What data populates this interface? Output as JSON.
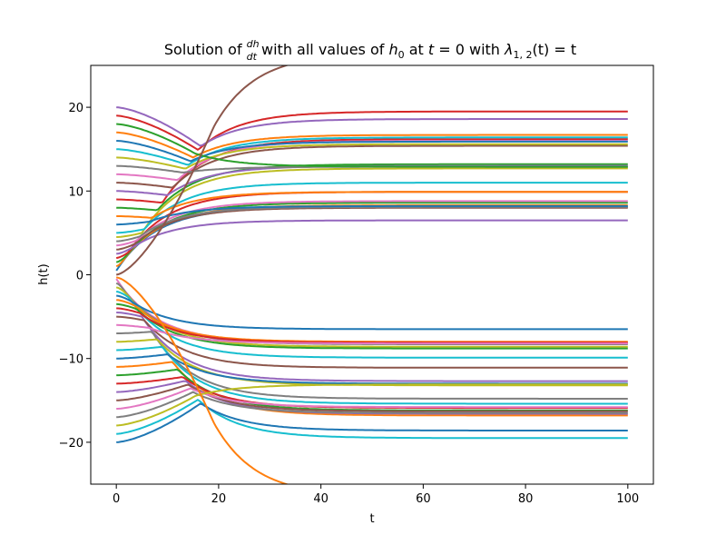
{
  "chart_data": {
    "type": "line",
    "title": {
      "t1": "Solution of ",
      "frac_num": "dh",
      "frac_den": "dt",
      "t2": " with all values of ",
      "h0_main": "h",
      "h0_sub": "0",
      "t3": " at ",
      "eq_var": "t",
      "eq_rest": " = 0 with ",
      "lambda": "λ",
      "lambda_sub": "1, 2",
      "lambda_rest": "(t) = t"
    },
    "xlabel": "t",
    "ylabel": "h(t)",
    "xlim": [
      -5,
      105
    ],
    "ylim": [
      -25,
      25
    ],
    "x_ticks": [
      {
        "value": 0,
        "label": "0"
      },
      {
        "value": 20,
        "label": "20"
      },
      {
        "value": 40,
        "label": "40"
      },
      {
        "value": 60,
        "label": "60"
      },
      {
        "value": 80,
        "label": "80"
      },
      {
        "value": 100,
        "label": "100"
      }
    ],
    "y_ticks": [
      {
        "value": -20,
        "label": "−20"
      },
      {
        "value": -10,
        "label": "−10"
      },
      {
        "value": 0,
        "label": "0"
      },
      {
        "value": 10,
        "label": "10"
      },
      {
        "value": 20,
        "label": "20"
      }
    ],
    "grid": false,
    "colors": [
      "#1f77b4",
      "#ff7f0e",
      "#2ca02c",
      "#d62728",
      "#9467bd",
      "#8c564b",
      "#e377c2",
      "#7f7f7f",
      "#bcbd22",
      "#17becf"
    ],
    "series": [
      {
        "h0": 0.5,
        "t_merge": 0.5,
        "final": 8.1
      },
      {
        "h0": 1.0,
        "t_merge": 1.5,
        "final": 8.3
      },
      {
        "h0": 1.5,
        "t_merge": 2.0,
        "final": 8.6
      },
      {
        "h0": 2.0,
        "t_merge": 2.5,
        "final": 9.9
      },
      {
        "h0": 2.5,
        "t_merge": 3.0,
        "final": 6.5
      },
      {
        "h0": 3.0,
        "t_merge": 3.5,
        "final": 8.0
      },
      {
        "h0": 3.5,
        "t_merge": 4.0,
        "final": 8.8
      },
      {
        "h0": 4.0,
        "t_merge": 4.5,
        "final": 8.1
      },
      {
        "h0": 4.5,
        "t_merge": 5.0,
        "final": 12.7
      },
      {
        "h0": 5.0,
        "t_merge": 5.5,
        "final": 11.0
      },
      {
        "h0": 6.0,
        "t_merge": 6.5,
        "final": 8.2
      },
      {
        "h0": 7.0,
        "t_merge": 7.0,
        "final": 9.9
      },
      {
        "h0": 8.0,
        "t_merge": 8.0,
        "final": 13.2
      },
      {
        "h0": 9.0,
        "t_merge": 9.0,
        "final": 16.2
      },
      {
        "h0": 10.0,
        "t_merge": 10.0,
        "final": 13.0
      },
      {
        "h0": 11.0,
        "t_merge": 11.0,
        "final": 15.4
      },
      {
        "h0": 12.0,
        "t_merge": 12.0,
        "final": 16.0
      },
      {
        "h0": 13.0,
        "t_merge": 13.0,
        "final": 12.9
      },
      {
        "h0": 14.0,
        "t_merge": 13.5,
        "final": 15.6
      },
      {
        "h0": 15.0,
        "t_merge": 14.0,
        "final": 16.4
      },
      {
        "h0": 16.0,
        "t_merge": 14.5,
        "final": 15.9
      },
      {
        "h0": 17.0,
        "t_merge": 15.0,
        "final": 16.7
      },
      {
        "h0": 18.0,
        "t_merge": 15.5,
        "final": 12.9
      },
      {
        "h0": 19.0,
        "t_merge": 16.0,
        "final": 19.5
      },
      {
        "h0": 20.0,
        "t_merge": 16.5,
        "final": 18.6
      },
      {
        "h0": 0.0,
        "t_merge": 19.0,
        "final": 26.5
      },
      {
        "h0": -0.5,
        "t_merge": 0.5,
        "final": -8.1
      },
      {
        "h0": -1.0,
        "t_merge": 1.5,
        "final": -8.3
      },
      {
        "h0": -1.5,
        "t_merge": 2.0,
        "final": -8.6
      },
      {
        "h0": -2.0,
        "t_merge": 2.5,
        "final": -9.9
      },
      {
        "h0": -2.5,
        "t_merge": 3.0,
        "final": -6.5
      },
      {
        "h0": -3.0,
        "t_merge": 3.5,
        "final": -8.0
      },
      {
        "h0": -3.5,
        "t_merge": 4.0,
        "final": -8.8
      },
      {
        "h0": -4.0,
        "t_merge": 4.5,
        "final": -8.1
      },
      {
        "h0": -4.5,
        "t_merge": 5.0,
        "final": -12.7
      },
      {
        "h0": -5.0,
        "t_merge": 5.5,
        "final": -11.1
      },
      {
        "h0": -6.0,
        "t_merge": 6.5,
        "final": -8.2
      },
      {
        "h0": -7.0,
        "t_merge": 7.0,
        "final": -14.8
      },
      {
        "h0": -8.0,
        "t_merge": 8.0,
        "final": -13.2
      },
      {
        "h0": -9.0,
        "t_merge": 9.0,
        "final": -15.4
      },
      {
        "h0": -10.0,
        "t_merge": 10.0,
        "final": -13.0
      },
      {
        "h0": -11.0,
        "t_merge": 11.0,
        "final": -16.8
      },
      {
        "h0": -12.0,
        "t_merge": 12.0,
        "final": -16.2
      },
      {
        "h0": -13.0,
        "t_merge": 13.0,
        "final": -15.9
      },
      {
        "h0": -14.0,
        "t_merge": 13.5,
        "final": -16.6
      },
      {
        "h0": -15.0,
        "t_merge": 14.0,
        "final": -16.3
      },
      {
        "h0": -16.0,
        "t_merge": 14.5,
        "final": -15.8
      },
      {
        "h0": -17.0,
        "t_merge": 15.0,
        "final": -16.5
      },
      {
        "h0": -18.0,
        "t_merge": 15.5,
        "final": -13.1
      },
      {
        "h0": -19.0,
        "t_merge": 16.0,
        "final": -19.5
      },
      {
        "h0": -20.0,
        "t_merge": 16.5,
        "final": -18.6
      },
      {
        "h0": -0.3,
        "t_merge": 19.0,
        "final": -26.5
      }
    ]
  }
}
